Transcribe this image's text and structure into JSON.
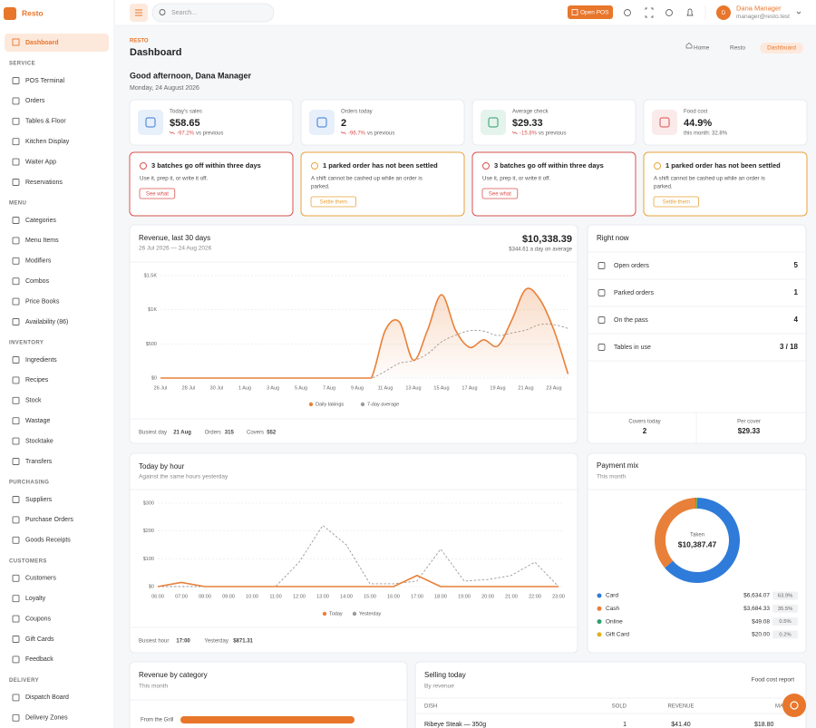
{
  "sidebar": {
    "brand": "Resto",
    "active": "Dashboard",
    "sections": [
      {
        "title": "SERVICE",
        "items": [
          "POS Terminal",
          "Orders",
          "Tables & Floor",
          "Kitchen Display",
          "Waiter App",
          "Reservations"
        ]
      },
      {
        "title": "MENU",
        "items": [
          "Categories",
          "Menu Items",
          "Modifiers",
          "Combos",
          "Price Books",
          "Availability (86)"
        ]
      },
      {
        "title": "INVENTORY",
        "items": [
          "Ingredients",
          "Recipes",
          "Stock",
          "Wastage",
          "Stocktake",
          "Transfers"
        ]
      },
      {
        "title": "PURCHASING",
        "items": [
          "Suppliers",
          "Purchase Orders",
          "Goods Receipts"
        ]
      },
      {
        "title": "CUSTOMERS",
        "items": [
          "Customers",
          "Loyalty",
          "Coupons",
          "Gift Cards",
          "Feedback"
        ]
      },
      {
        "title": "DELIVERY",
        "items": [
          "Dispatch Board",
          "Delivery Zones"
        ]
      }
    ]
  },
  "topbar": {
    "search": "Search...",
    "open_pos": "Open POS",
    "avatar": "D",
    "user_name": "Dana Manager",
    "user_email": "manager@resto.test"
  },
  "header": {
    "eyebrow": "RESTO",
    "title": "Dashboard",
    "breadcrumbs": [
      "Home",
      "Resto",
      "Dashboard"
    ],
    "greeting": "Good afternoon, Dana Manager",
    "date": "Monday, 24 August 2026"
  },
  "kpis": [
    {
      "label": "Today's sales",
      "value": "$58.65",
      "change": "-97.2%",
      "note": "vs previous",
      "color": "#3b78d8"
    },
    {
      "label": "Orders today",
      "value": "2",
      "change": "-96.7%",
      "note": "vs previous",
      "color": "#3b78d8"
    },
    {
      "label": "Average check",
      "value": "$29.33",
      "change": "-15.8%",
      "note": "vs previous",
      "color": "#2a9d6a"
    },
    {
      "label": "Food cost",
      "value": "44.9%",
      "note": "this month: 32.8%",
      "color": "#d9534f"
    }
  ],
  "alerts": [
    {
      "title": "3 batches go off within three days",
      "text": [
        "Use it, prep it, or write it off."
      ],
      "action": "See what",
      "color": "#d9534f"
    },
    {
      "title": "1 parked order has not been settled",
      "text": [
        "A shift cannot be cashed up while an order is",
        "parked."
      ],
      "action": "Settle them",
      "color": "#e8a33a"
    },
    {
      "title": "3 batches go off within three days",
      "text": [
        "Use it, prep it, or write it off."
      ],
      "action": "See what",
      "color": "#d9534f"
    },
    {
      "title": "1 parked order has not been settled",
      "text": [
        "A shift cannot be cashed up while an order is",
        "parked."
      ],
      "action": "Settle them",
      "color": "#e8a33a"
    }
  ],
  "revenue_chart": {
    "type": "line",
    "title": "Revenue, last 30 days",
    "subtitle": "26 Jul 2026 — 24 Aug 2026",
    "total": "$10,338.39",
    "average": "$344.61 a day on average",
    "categories": [
      "26 Jul",
      null,
      "28 Jul",
      null,
      "30 Jul",
      null,
      "1 Aug",
      null,
      "3 Aug",
      null,
      "5 Aug",
      null,
      "7 Aug",
      null,
      "9 Aug",
      null,
      "11 Aug",
      null,
      "13 Aug",
      null,
      "15 Aug",
      null,
      "17 Aug",
      null,
      "19 Aug",
      null,
      "21 Aug",
      null,
      "23 Aug",
      null
    ],
    "series": [
      {
        "name": "Daily takings",
        "color": "#e8803a",
        "values": [
          0,
          0,
          0,
          0,
          0,
          0,
          0,
          0,
          0,
          0,
          0,
          0,
          0,
          0,
          0,
          0,
          700,
          820,
          260,
          700,
          1220,
          700,
          450,
          560,
          470,
          850,
          1300,
          1150,
          700,
          60
        ]
      },
      {
        "name": "7-day average",
        "color": "#9a9a9a",
        "dashed": true,
        "values": [
          0,
          0,
          0,
          0,
          0,
          0,
          0,
          0,
          0,
          0,
          0,
          0,
          0,
          0,
          0,
          0,
          100,
          217,
          254,
          354,
          529,
          629,
          693,
          687,
          623,
          659,
          704,
          783,
          783,
          727
        ]
      }
    ],
    "ylim": [
      0,
      1500
    ],
    "yticks": [
      {
        "value": 0,
        "label": "$0"
      },
      {
        "value": 500,
        "label": "$500"
      },
      {
        "value": 1000,
        "label": "$1K"
      },
      {
        "value": 1500,
        "label": "$1.5K"
      }
    ],
    "grid": true,
    "smooth": true,
    "footer": [
      {
        "label": "Busiest day",
        "value": "21 Aug"
      },
      {
        "label": "Orders",
        "value": "315"
      },
      {
        "label": "Covers",
        "value": "552"
      }
    ]
  },
  "right_now": {
    "title": "Right now",
    "rows": [
      {
        "label": "Open orders",
        "value": "5"
      },
      {
        "label": "Parked orders",
        "value": "1"
      },
      {
        "label": "On the pass",
        "value": "4"
      },
      {
        "label": "Tables in use",
        "value": "3 / 18"
      }
    ],
    "stats": [
      {
        "label": "Covers today",
        "value": "2"
      },
      {
        "label": "Per cover",
        "value": "$29.33"
      }
    ]
  },
  "hourly_chart": {
    "type": "line",
    "title": "Today by hour",
    "subtitle": "Against the same hours yesterday",
    "categories": [
      "06:00",
      "07:00",
      "08:00",
      "09:00",
      "10:00",
      "11:00",
      "12:00",
      "13:00",
      "14:00",
      "15:00",
      "16:00",
      "17:00",
      "18:00",
      "19:00",
      "20:00",
      "21:00",
      "22:00",
      "23:00"
    ],
    "series": [
      {
        "name": "Today",
        "color": "#e8803a",
        "values": [
          0,
          15,
          0,
          0,
          0,
          0,
          0,
          0,
          0,
          0,
          0,
          40,
          0,
          0,
          0,
          0,
          0,
          0
        ]
      },
      {
        "name": "Yesterday",
        "color": "#9a9a9a",
        "dashed": true,
        "values": [
          0,
          0,
          0,
          0,
          0,
          0,
          88,
          220,
          150,
          10,
          10,
          20,
          135,
          20,
          25,
          40,
          88,
          0
        ]
      }
    ],
    "ylim": [
      0,
      300
    ],
    "yticks": [
      {
        "value": 0,
        "label": "$0"
      },
      {
        "value": 100,
        "label": "$100"
      },
      {
        "value": 200,
        "label": "$200"
      },
      {
        "value": 300,
        "label": "$300"
      }
    ],
    "grid": true,
    "smooth": false,
    "footer": [
      {
        "label": "Busiest hour",
        "value": "17:00"
      },
      {
        "label": "Yesterday",
        "value": "$871.31"
      }
    ]
  },
  "payment_mix": {
    "type": "pie",
    "title": "Payment mix",
    "subtitle": "This month",
    "center_label": "Taken",
    "center_value": "$10,387.47",
    "categories": [
      "Card",
      "Cash",
      "Online",
      "Gift Card"
    ],
    "amounts": [
      "$6,634.07",
      "$3,684.33",
      "$49.08",
      "$20.00"
    ],
    "values": [
      63.9,
      35.5,
      0.5,
      0.2
    ],
    "value_labels": [
      "63.9%",
      "35.5%",
      "0.5%",
      "0.2%"
    ],
    "colors": [
      "#2f7bd9",
      "#e8803a",
      "#2aa06a",
      "#e0b020"
    ]
  },
  "category_revenue": {
    "title": "Revenue by category",
    "subtitle": "This month",
    "bars": [
      "From the Grill"
    ]
  },
  "selling_today": {
    "title": "Selling today",
    "subtitle": "By revenue",
    "link": "Food cost report",
    "columns": [
      "DISH",
      "SOLD",
      "REVENUE",
      "MARGIN"
    ],
    "rows": [
      [
        "Ribeye Steak — 350g",
        "1",
        "$41.40",
        "$18.80"
      ]
    ]
  }
}
